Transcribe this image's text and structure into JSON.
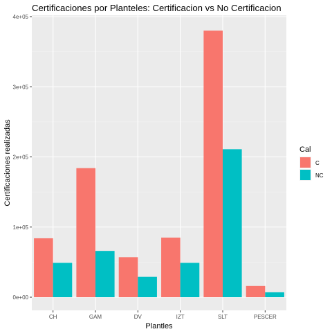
{
  "chart_data": {
    "type": "bar",
    "title": "Certificaciones por Planteles: Certificacion vs No Certificacion",
    "xlabel": "Plantles",
    "ylabel": "Certificaciones realizadas",
    "categories": [
      "CH",
      "GAM",
      "DV",
      "IZT",
      "SLT",
      "PESCER"
    ],
    "series": [
      {
        "name": "C",
        "color": "#F8766D",
        "values": [
          84000,
          184000,
          57000,
          85000,
          380000,
          16000
        ]
      },
      {
        "name": "NC",
        "color": "#00BFC4",
        "values": [
          49000,
          66000,
          29000,
          49000,
          211000,
          7000
        ]
      }
    ],
    "ylim": [
      0,
      400000
    ],
    "yticks": [
      0,
      100000,
      200000,
      300000,
      400000
    ],
    "ytick_labels": [
      "0e+00",
      "1e+05",
      "2e+05",
      "3e+05",
      "4e+05"
    ],
    "legend": {
      "title": "Cal",
      "position": "right"
    },
    "grid": true,
    "panel_color": "#EBEBEB"
  }
}
